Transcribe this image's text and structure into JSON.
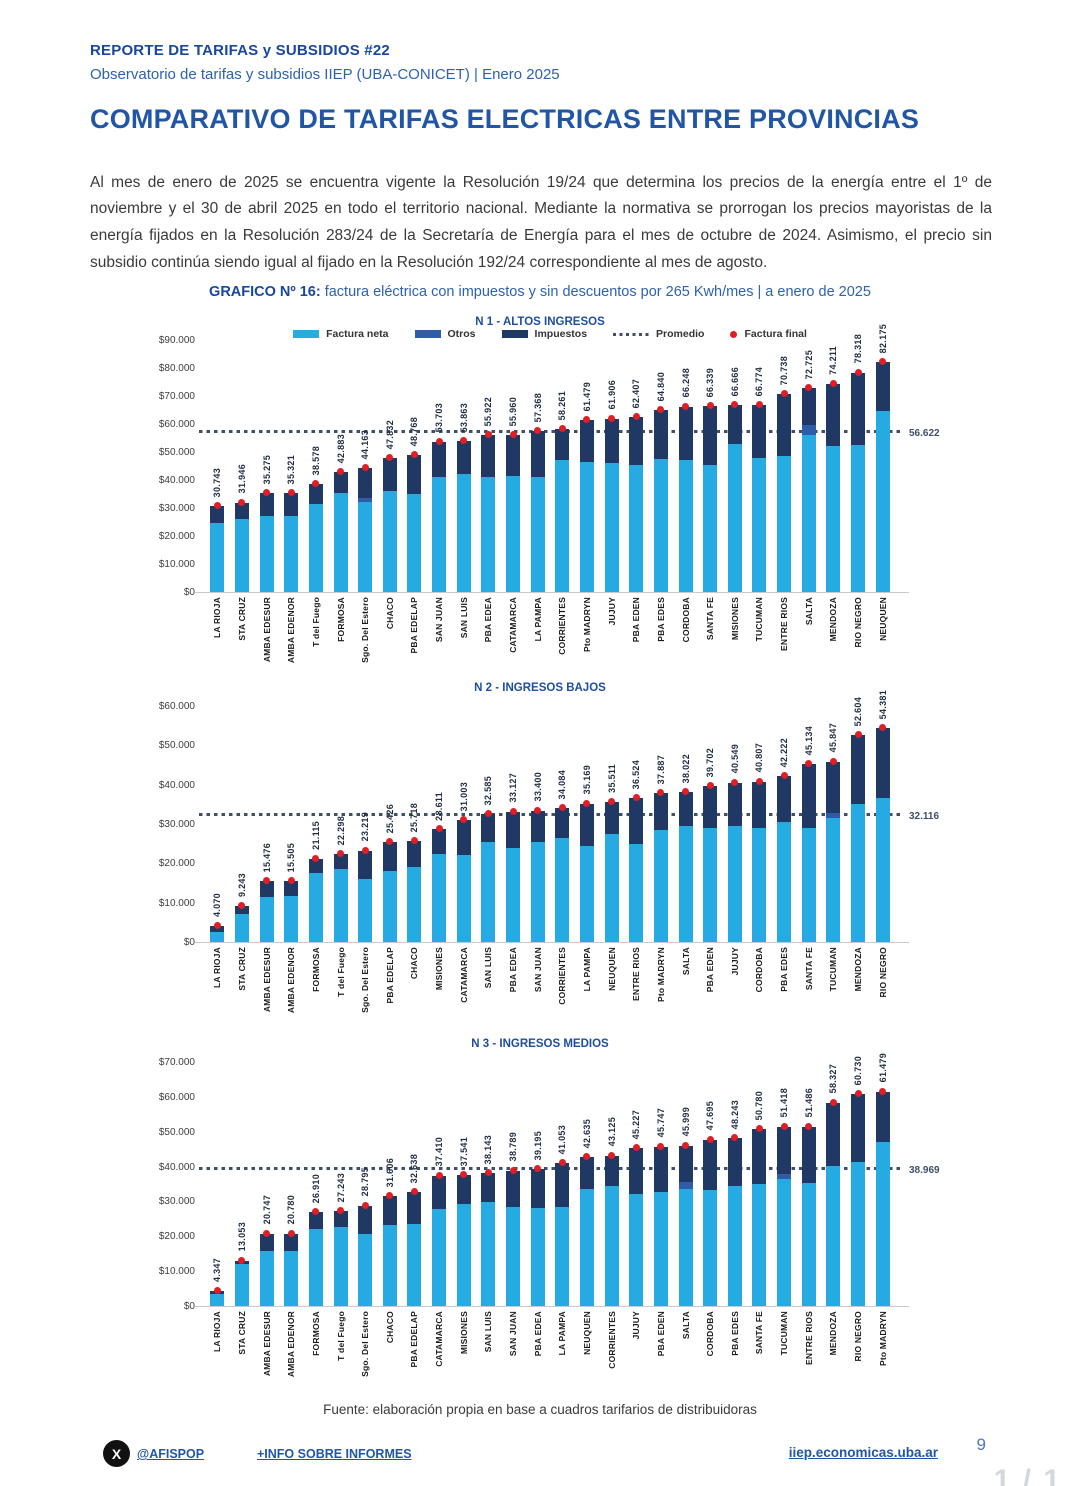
{
  "page": {
    "report_label": "REPORTE DE TARIFAS y SUBSIDIOS #22",
    "subtitle": "Observatorio de tarifas y subsidios IIEP (UBA-CONICET) | Enero 2025",
    "title": "COMPARATIVO DE TARIFAS ELECTRICAS ENTRE PROVINCIAS",
    "body": "Al mes de enero de 2025 se encuentra vigente la Resolución 19/24 que determina los precios de la energía entre el 1º de noviembre y el 30 de abril 2025 en todo el territorio nacional. Mediante la normativa se prorrogan los precios mayoristas de la energía fijados en la Resolución 283/24 de la Secretaría de Energía para el mes de octubre de 2024. Asimismo, el precio sin subsidio continúa siendo igual al fijado en la Resolución 192/24 correspondiente al mes de agosto.",
    "caption_bold": "GRAFICO Nº 16:",
    "caption_rest": " factura eléctrica con impuestos y sin descuentos por 265 Kwh/mes | a enero de 2025",
    "fuente": "Fuente: elaboración propia en base a cuadros tarifarios de distribuidoras",
    "footer": {
      "x_handle": "@AFISPOP",
      "info_link": "+INFO SOBRE INFORMES",
      "site_link": "iiep.economicas.uba.ar",
      "page_number": "9",
      "page_indicator": "1 / 1"
    }
  },
  "legend": {
    "neta": "Factura neta",
    "otros": "Otros",
    "impuestos": "Impuestos",
    "promedio": "Promedio",
    "final": "Factura final"
  },
  "colors": {
    "neta": "#25AAE1",
    "otros": "#2E5CA8",
    "impuestos": "#1F3864",
    "final": "#E01E25",
    "promedio_line": "#3E4F69",
    "accent": "#2156A6"
  },
  "chart_data": [
    {
      "type": "bar",
      "title": "N 1 - ALTOS INGRESOS",
      "ymax": 90000,
      "ystep": 10000,
      "yticks": [
        "$90.000",
        "$80.000",
        "$70.000",
        "$60.000",
        "$50.000",
        "$40.000",
        "$30.000",
        "$20.000",
        "$10.000",
        "$0"
      ],
      "promedio_label": "56.622",
      "show_legend": true,
      "legend_position": "top-center",
      "grid": false,
      "categories": [
        "LA RIOJA",
        "STA CRUZ",
        "AMBA EDESUR",
        "AMBA EDENOR",
        "T del Fuego",
        "FORMOSA",
        "Sgo. Del Estero",
        "CHACO",
        "PBA EDELAP",
        "SAN JUAN",
        "SAN LUIS",
        "PBA EDEA",
        "CATAMARCA",
        "LA PAMPA",
        "CORRIENTES",
        "Pto MADRYN",
        "JUJUY",
        "PBA EDEN",
        "PBA EDES",
        "CORDOBA",
        "SANTA FE",
        "MISIONES",
        "TUCUMAN",
        "ENTRE RIOS",
        "SALTA",
        "MENDOZA",
        "RIO NEGRO",
        "NEUQUEN"
      ],
      "totals": [
        "30.743",
        "31.946",
        "35.275",
        "35.321",
        "38.578",
        "42.883",
        "44.163",
        "47.832",
        "48.768",
        "53.703",
        "53.863",
        "55.922",
        "55.960",
        "57.368",
        "58.261",
        "61.479",
        "61.906",
        "62.407",
        "64.840",
        "66.248",
        "66.339",
        "66.666",
        "66.774",
        "70.738",
        "72.725",
        "74.211",
        "78.318",
        "82.175"
      ],
      "neta": [
        24700,
        26000,
        27000,
        27000,
        31500,
        35400,
        32000,
        36000,
        35000,
        41000,
        42000,
        41000,
        41500,
        41000,
        47000,
        46500,
        45900,
        45500,
        47400,
        47100,
        45200,
        52800,
        47700,
        48700,
        56200,
        52000,
        52600,
        64600
      ],
      "otros": [
        0,
        0,
        0,
        0,
        0,
        0,
        1500,
        0,
        0,
        0,
        0,
        0,
        0,
        0,
        0,
        0,
        0,
        0,
        0,
        0,
        0,
        0,
        0,
        0,
        3500,
        0,
        0,
        0
      ]
    },
    {
      "type": "bar",
      "title": "N 2 - INGRESOS BAJOS",
      "ymax": 60000,
      "ystep": 10000,
      "yticks": [
        "$60.000",
        "$50.000",
        "$40.000",
        "$30.000",
        "$20.000",
        "$10.000",
        "$0"
      ],
      "promedio_label": "32.116",
      "show_legend": false,
      "grid": false,
      "categories": [
        "LA RIOJA",
        "STA CRUZ",
        "AMBA EDESUR",
        "AMBA EDENOR",
        "FORMOSA",
        "T del Fuego",
        "Sgo. Del Estero",
        "PBA EDELAP",
        "CHACO",
        "MISIONES",
        "CATAMARCA",
        "SAN LUIS",
        "PBA EDEA",
        "SAN JUAN",
        "CORRIENTES",
        "LA PAMPA",
        "NEUQUEN",
        "ENTRE RIOS",
        "Pto MADRYN",
        "SALTA",
        "PBA EDEN",
        "JUJUY",
        "CORDOBA",
        "PBA EDES",
        "SANTA FE",
        "TUCUMAN",
        "MENDOZA",
        "RIO NEGRO"
      ],
      "totals": [
        "4.070",
        "9.243",
        "15.476",
        "15.505",
        "21.115",
        "22.298",
        "23.219",
        "25.426",
        "25.718",
        "28.611",
        "31.003",
        "32.585",
        "33.127",
        "33.400",
        "34.084",
        "35.169",
        "35.511",
        "36.524",
        "37.887",
        "38.022",
        "39.702",
        "40.549",
        "40.807",
        "42.222",
        "45.134",
        "45.847",
        "52.604",
        "54.381"
      ],
      "neta": [
        2600,
        7000,
        11500,
        11600,
        17500,
        18500,
        16000,
        18000,
        19000,
        22500,
        22000,
        25500,
        24000,
        25500,
        26500,
        24500,
        27500,
        25000,
        28500,
        29500,
        29000,
        29500,
        29000,
        30500,
        29000,
        31500,
        35000,
        36500
      ],
      "otros": [
        0,
        0,
        0,
        0,
        0,
        0,
        0,
        0,
        0,
        0,
        0,
        0,
        0,
        0,
        0,
        0,
        0,
        0,
        0,
        0,
        0,
        0,
        0,
        0,
        0,
        1200,
        0,
        0
      ]
    },
    {
      "type": "bar",
      "title": "N 3 - INGRESOS MEDIOS",
      "ymax": 70000,
      "ystep": 10000,
      "yticks": [
        "$70.000",
        "$60.000",
        "$50.000",
        "$40.000",
        "$30.000",
        "$20.000",
        "$10.000",
        "$0"
      ],
      "promedio_label": "38.969",
      "show_legend": false,
      "grid": false,
      "categories": [
        "LA RIOJA",
        "STA CRUZ",
        "AMBA EDESUR",
        "AMBA EDENOR",
        "FORMOSA",
        "T del Fuego",
        "Sgo. Del Estero",
        "CHACO",
        "PBA EDELAP",
        "CATAMARCA",
        "MISIONES",
        "SAN LUIS",
        "SAN JUAN",
        "PBA EDEA",
        "LA PAMPA",
        "NEUQUEN",
        "CORRIENTES",
        "JUJUY",
        "PBA EDEN",
        "SALTA",
        "CORDOBA",
        "PBA EDES",
        "SANTA FE",
        "TUCUMAN",
        "ENTRE RIOS",
        "MENDOZA",
        "RIO NEGRO",
        "Pto MADRYN"
      ],
      "totals": [
        "4.347",
        "13.053",
        "20.747",
        "20.780",
        "26.910",
        "27.243",
        "28.795",
        "31.606",
        "32.638",
        "37.410",
        "37.541",
        "38.143",
        "38.789",
        "39.195",
        "41.053",
        "42.635",
        "43.125",
        "45.227",
        "45.747",
        "45.999",
        "47.695",
        "48.243",
        "50.780",
        "51.418",
        "51.486",
        "58.327",
        "60.730",
        "61.479"
      ],
      "neta": [
        3500,
        12000,
        15700,
        15700,
        22000,
        22700,
        20700,
        23300,
        23500,
        27700,
        29200,
        29700,
        28500,
        28200,
        28500,
        33500,
        34500,
        32200,
        32800,
        33500,
        33200,
        34500,
        35000,
        36500,
        35200,
        40200,
        41200,
        47000
      ],
      "otros": [
        0,
        0,
        0,
        0,
        0,
        0,
        0,
        0,
        0,
        0,
        0,
        0,
        0,
        0,
        0,
        0,
        0,
        0,
        0,
        2000,
        0,
        0,
        0,
        1500,
        0,
        0,
        0,
        0
      ]
    }
  ]
}
